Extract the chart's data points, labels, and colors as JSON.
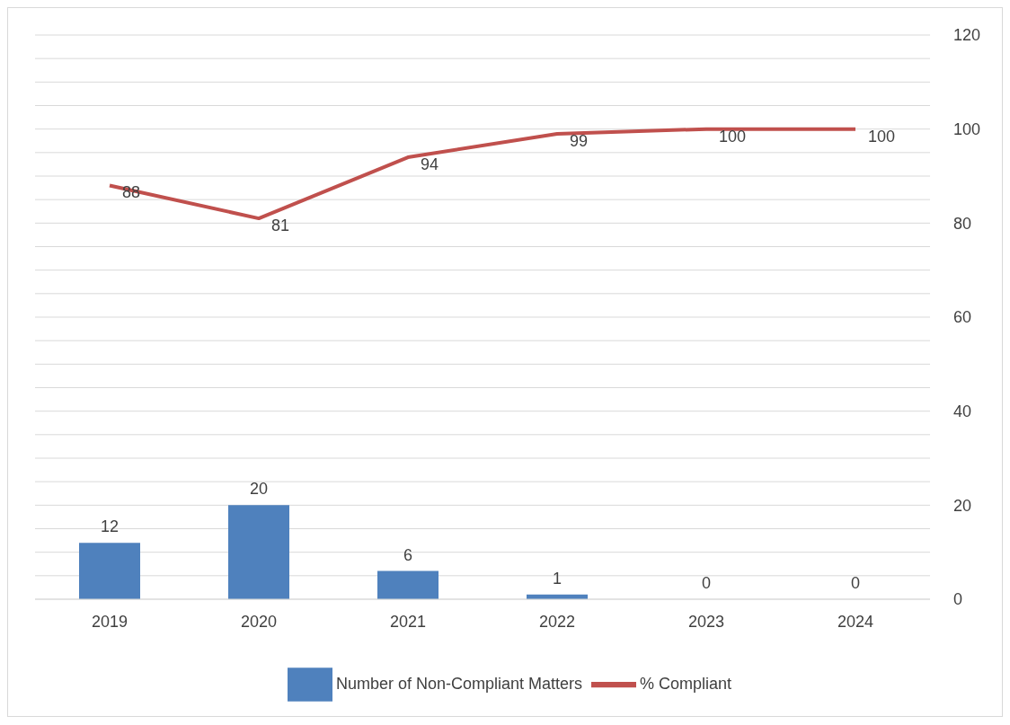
{
  "chart_data": {
    "type": "bar",
    "categories": [
      "2019",
      "2020",
      "2021",
      "2022",
      "2023",
      "2024"
    ],
    "series": [
      {
        "name": "Number of Non-Compliant Matters",
        "color": "#4f81bd",
        "values": [
          12,
          20,
          6,
          1,
          0,
          0
        ]
      },
      {
        "name": "% Compliant",
        "type": "line",
        "color": "#c0504d",
        "values": [
          88,
          81,
          94,
          99,
          100,
          100
        ]
      }
    ],
    "ylim": [
      0,
      120
    ],
    "yticks": [
      0,
      {
        "value": 5,
        "label": null
      },
      {
        "value": 10,
        "label": null
      },
      {
        "value": 15,
        "label": null
      },
      20,
      {
        "value": 25,
        "label": null
      },
      {
        "value": 30,
        "label": null
      },
      {
        "value": 35,
        "label": null
      },
      40,
      {
        "value": 45,
        "label": null
      },
      {
        "value": 50,
        "label": null
      },
      {
        "value": 55,
        "label": null
      },
      60,
      {
        "value": 65,
        "label": null
      },
      {
        "value": 70,
        "label": null
      },
      {
        "value": 75,
        "label": null
      },
      80,
      {
        "value": 85,
        "label": null
      },
      {
        "value": 90,
        "label": null
      },
      {
        "value": 95,
        "label": null
      },
      100,
      {
        "value": 105,
        "label": null
      },
      {
        "value": 110,
        "label": null
      },
      {
        "value": 115,
        "label": null
      },
      120
    ],
    "grid": "y",
    "legend": "bottom",
    "data_labels": true,
    "marker": "none"
  }
}
